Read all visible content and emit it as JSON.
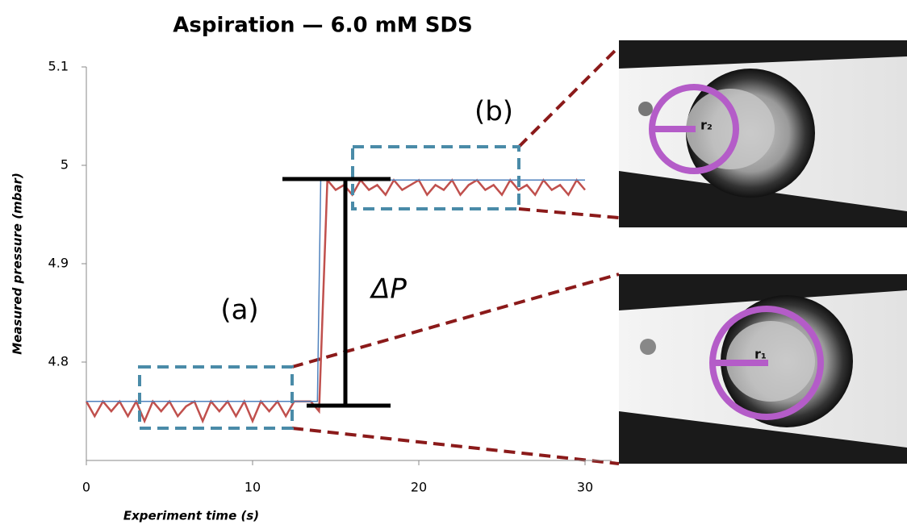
{
  "chart_data": {
    "type": "line",
    "title": "Aspiration — 6.0 mM SDS",
    "x_label": "Experiment time (s)",
    "y_label": "Measured pressure (mbar)",
    "xlim": [
      0,
      31.6
    ],
    "xticks": [
      0,
      10,
      20,
      30
    ],
    "ylim": [
      4.7,
      5.1
    ],
    "yticks": [
      4.8,
      4.9,
      5,
      5.1
    ],
    "series": [
      {
        "color": "#c0504d",
        "x": [
          0,
          0.5,
          1,
          1.5,
          2,
          2.5,
          3,
          3.5,
          4,
          4.5,
          5,
          5.5,
          6,
          6.5,
          7,
          7.5,
          8,
          8.5,
          9,
          9.5,
          10,
          10.5,
          11,
          11.5,
          12,
          12.5,
          13,
          13.5,
          14,
          14.5,
          15,
          15.5,
          16,
          16.5,
          17,
          17.5,
          18,
          18.5,
          19,
          19.5,
          20,
          20.5,
          21,
          21.5,
          22,
          22.5,
          23,
          23.5,
          24,
          24.5,
          25,
          25.5,
          26,
          26.5,
          27,
          27.5,
          28,
          28.5,
          29,
          29.5,
          30
        ],
        "values": [
          4.76,
          4.745,
          4.76,
          4.75,
          4.76,
          4.745,
          4.76,
          4.74,
          4.76,
          4.75,
          4.76,
          4.745,
          4.755,
          4.76,
          4.74,
          4.76,
          4.75,
          4.76,
          4.745,
          4.76,
          4.74,
          4.76,
          4.75,
          4.76,
          4.745,
          4.76,
          4.76,
          4.76,
          4.75,
          4.985,
          4.975,
          4.98,
          4.97,
          4.985,
          4.975,
          4.98,
          4.97,
          4.985,
          4.975,
          4.98,
          4.985,
          4.97,
          4.98,
          4.975,
          4.985,
          4.97,
          4.98,
          4.985,
          4.975,
          4.98,
          4.97,
          4.985,
          4.975,
          4.98,
          4.97,
          4.985,
          4.975,
          4.98,
          4.97,
          4.985,
          4.975
        ]
      },
      {
        "color": "#4f81bd",
        "x": [
          0,
          13.9,
          14.1,
          30
        ],
        "values": [
          4.76,
          4.76,
          4.985,
          4.985
        ]
      }
    ],
    "annotations": [
      "(a)",
      "(b)",
      "ΔP",
      "r₂",
      "r₁"
    ]
  }
}
